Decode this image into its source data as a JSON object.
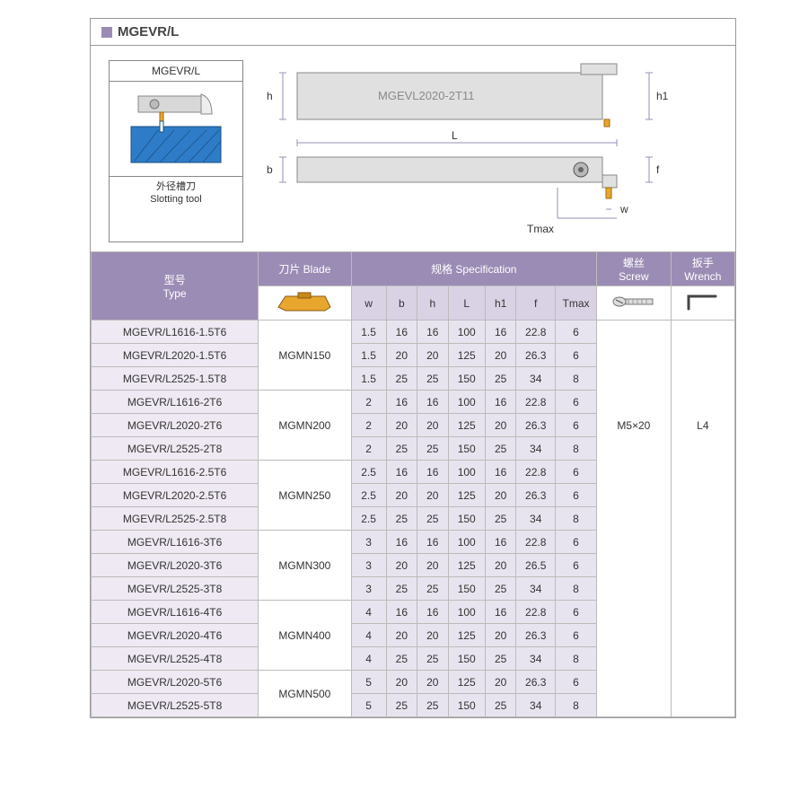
{
  "title": "MGEVR/L",
  "diagram_box": {
    "top_label": "MGEVR/L",
    "bottom_label_cn": "外径槽刀",
    "bottom_label_en": "Slotting tool",
    "tool_body_color": "#d8d8d8",
    "workpiece_color": "#2e7cc7",
    "insert_color": "#e8a62e"
  },
  "tech_drawing": {
    "body_color": "#e0e0e0",
    "product_marking": "MGEVL2020-2T11",
    "labels": {
      "h": "h",
      "L": "L",
      "b": "b",
      "h1": "h1",
      "f": "f",
      "w": "w",
      "Tmax": "Tmax"
    },
    "dim_line_color": "#9b8cb5"
  },
  "headers": {
    "type": {
      "cn": "型号",
      "en": "Type"
    },
    "blade": {
      "cn": "刀片",
      "en": "Blade"
    },
    "spec": {
      "cn": "规格",
      "en": "Specification"
    },
    "screw": {
      "cn": "螺丝",
      "en": "Screw"
    },
    "wrench": {
      "cn": "扳手",
      "en": "Wrench"
    }
  },
  "spec_cols": [
    "w",
    "b",
    "h",
    "L",
    "h1",
    "f",
    "Tmax"
  ],
  "screw_value": "M5×20",
  "wrench_value": "L4",
  "colors": {
    "header_bg": "#9b8cb5",
    "subheader_bg": "#d8d2e4",
    "type_cell_bg": "#eee9f2",
    "num_cell_bg": "#e8e4ef",
    "num_cell_alt_bg": "#f3f0f7",
    "border": "#bbbbbb"
  },
  "groups": [
    {
      "blade": "MGMN150",
      "rows": [
        {
          "type": "MGEVR/L1616-1.5T6",
          "w": "1.5",
          "b": "16",
          "h": "16",
          "L": "100",
          "h1": "16",
          "f": "22.8",
          "Tmax": "6"
        },
        {
          "type": "MGEVR/L2020-1.5T6",
          "w": "1.5",
          "b": "20",
          "h": "20",
          "L": "125",
          "h1": "20",
          "f": "26.3",
          "Tmax": "6"
        },
        {
          "type": "MGEVR/L2525-1.5T8",
          "w": "1.5",
          "b": "25",
          "h": "25",
          "L": "150",
          "h1": "25",
          "f": "34",
          "Tmax": "8"
        }
      ]
    },
    {
      "blade": "MGMN200",
      "rows": [
        {
          "type": "MGEVR/L1616-2T6",
          "w": "2",
          "b": "16",
          "h": "16",
          "L": "100",
          "h1": "16",
          "f": "22.8",
          "Tmax": "6"
        },
        {
          "type": "MGEVR/L2020-2T6",
          "w": "2",
          "b": "20",
          "h": "20",
          "L": "125",
          "h1": "20",
          "f": "26.3",
          "Tmax": "6"
        },
        {
          "type": "MGEVR/L2525-2T8",
          "w": "2",
          "b": "25",
          "h": "25",
          "L": "150",
          "h1": "25",
          "f": "34",
          "Tmax": "8"
        }
      ]
    },
    {
      "blade": "MGMN250",
      "rows": [
        {
          "type": "MGEVR/L1616-2.5T6",
          "w": "2.5",
          "b": "16",
          "h": "16",
          "L": "100",
          "h1": "16",
          "f": "22.8",
          "Tmax": "6"
        },
        {
          "type": "MGEVR/L2020-2.5T6",
          "w": "2.5",
          "b": "20",
          "h": "20",
          "L": "125",
          "h1": "20",
          "f": "26.3",
          "Tmax": "6"
        },
        {
          "type": "MGEVR/L2525-2.5T8",
          "w": "2.5",
          "b": "25",
          "h": "25",
          "L": "150",
          "h1": "25",
          "f": "34",
          "Tmax": "8"
        }
      ]
    },
    {
      "blade": "MGMN300",
      "rows": [
        {
          "type": "MGEVR/L1616-3T6",
          "w": "3",
          "b": "16",
          "h": "16",
          "L": "100",
          "h1": "16",
          "f": "22.8",
          "Tmax": "6"
        },
        {
          "type": "MGEVR/L2020-3T6",
          "w": "3",
          "b": "20",
          "h": "20",
          "L": "125",
          "h1": "20",
          "f": "26.5",
          "Tmax": "6"
        },
        {
          "type": "MGEVR/L2525-3T8",
          "w": "3",
          "b": "25",
          "h": "25",
          "L": "150",
          "h1": "25",
          "f": "34",
          "Tmax": "8"
        }
      ]
    },
    {
      "blade": "MGMN400",
      "rows": [
        {
          "type": "MGEVR/L1616-4T6",
          "w": "4",
          "b": "16",
          "h": "16",
          "L": "100",
          "h1": "16",
          "f": "22.8",
          "Tmax": "6"
        },
        {
          "type": "MGEVR/L2020-4T6",
          "w": "4",
          "b": "20",
          "h": "20",
          "L": "125",
          "h1": "20",
          "f": "26.3",
          "Tmax": "6"
        },
        {
          "type": "MGEVR/L2525-4T8",
          "w": "4",
          "b": "25",
          "h": "25",
          "L": "150",
          "h1": "25",
          "f": "34",
          "Tmax": "8"
        }
      ]
    },
    {
      "blade": "MGMN500",
      "rows": [
        {
          "type": "MGEVR/L2020-5T6",
          "w": "5",
          "b": "20",
          "h": "20",
          "L": "125",
          "h1": "20",
          "f": "26.3",
          "Tmax": "6"
        },
        {
          "type": "MGEVR/L2525-5T8",
          "w": "5",
          "b": "25",
          "h": "25",
          "L": "150",
          "h1": "25",
          "f": "34",
          "Tmax": "8"
        }
      ]
    }
  ]
}
